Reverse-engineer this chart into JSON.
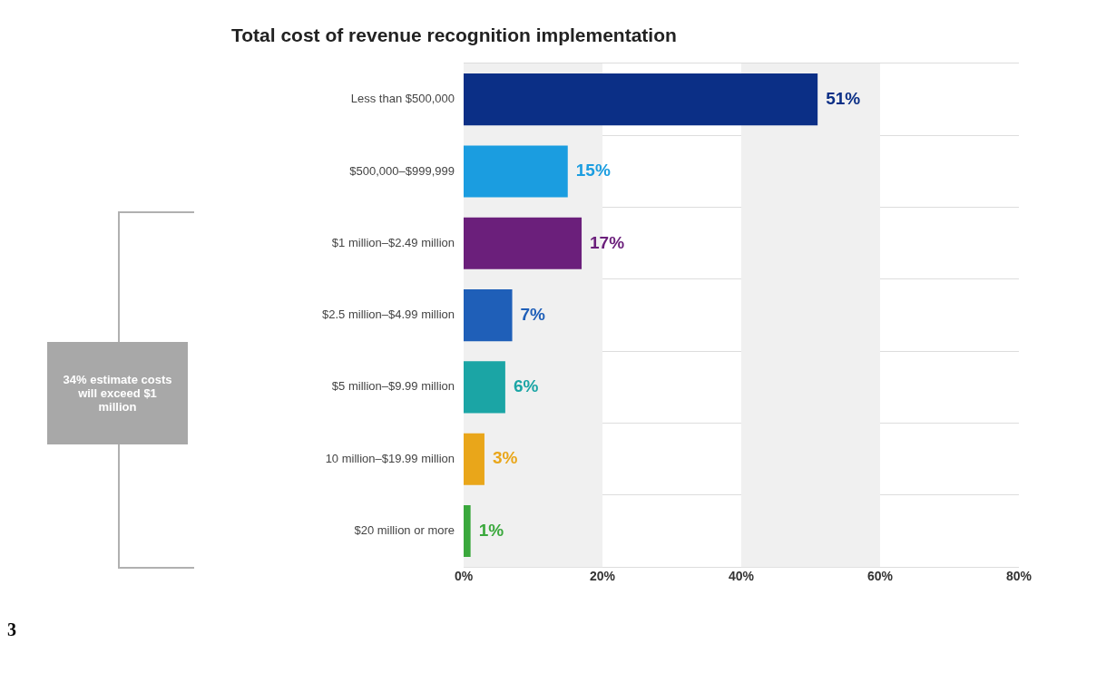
{
  "chart_data": {
    "type": "bar",
    "orientation": "horizontal",
    "title": "Total cost of revenue recognition implementation",
    "categories": [
      "Less than $500,000",
      "$500,000–$999,999",
      "$1 million–$2.49 million",
      "$2.5 million–$4.99 million",
      "$5 million–$9.99 million",
      "10 million–$19.99 million",
      "$20 million or more"
    ],
    "values": [
      51,
      15,
      17,
      7,
      6,
      3,
      1
    ],
    "colors": [
      "#0b2f86",
      "#1b9de0",
      "#6b1f7b",
      "#1f5fb8",
      "#1ba5a5",
      "#e9a61a",
      "#3aa83c"
    ],
    "xlim": [
      0,
      80
    ],
    "xticks": [
      {
        "value": 0,
        "label": "0%"
      },
      {
        "value": 20,
        "label": "20%"
      },
      {
        "value": 40,
        "label": "40%"
      },
      {
        "value": 60,
        "label": "60%"
      },
      {
        "value": 80,
        "label": "80%"
      }
    ],
    "grid": "y",
    "value_labels": [
      "51%",
      "15%",
      "17%",
      "7%",
      "6%",
      "3%",
      "1%"
    ],
    "bands": [
      {
        "axis": "x",
        "from": 0,
        "to": 20,
        "color": "#f0f0f0"
      },
      {
        "axis": "x",
        "from": 40,
        "to": 60,
        "color": "#f0f0f0"
      }
    ],
    "annotations": [
      "34% estimate costs will exceed $1 million",
      "3"
    ]
  }
}
